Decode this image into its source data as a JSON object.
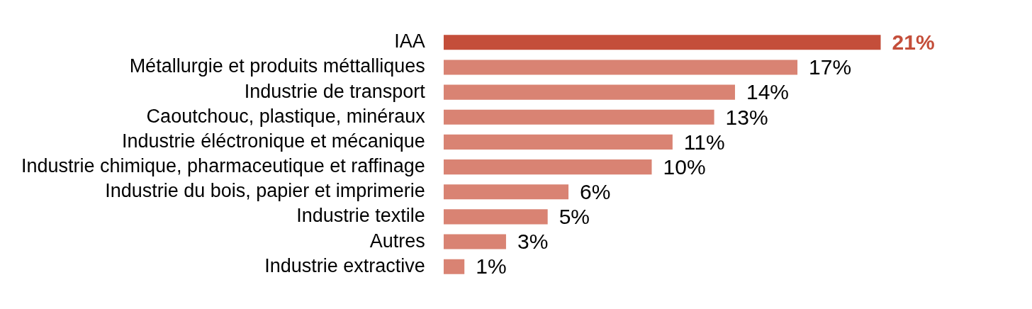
{
  "chart_data": {
    "type": "bar",
    "orientation": "horizontal",
    "categories": [
      "IAA",
      "Métallurgie et produits méttalliques",
      "Industrie de transport",
      "Caoutchouc, plastique, minéraux",
      "Industrie éléctronique et mécanique",
      "Industrie chimique, pharmaceutique et raffinage",
      "Industrie du bois, papier et imprimerie",
      "Industrie textile",
      "Autres",
      "Industrie extractive"
    ],
    "values": [
      21,
      17,
      14,
      13,
      11,
      10,
      6,
      5,
      3,
      1
    ],
    "colors": [
      "#c44e3a",
      "#d98373",
      "#d98373",
      "#d98373",
      "#d98373",
      "#d98373",
      "#d98373",
      "#d98373",
      "#d98373",
      "#d98373"
    ],
    "value_labels": [
      "21%",
      "17%",
      "14%",
      "13%",
      "11%",
      "10%",
      "6%",
      "5%",
      "3%",
      "1%"
    ],
    "grid": false,
    "legend": false,
    "tick_labels": "y"
  }
}
